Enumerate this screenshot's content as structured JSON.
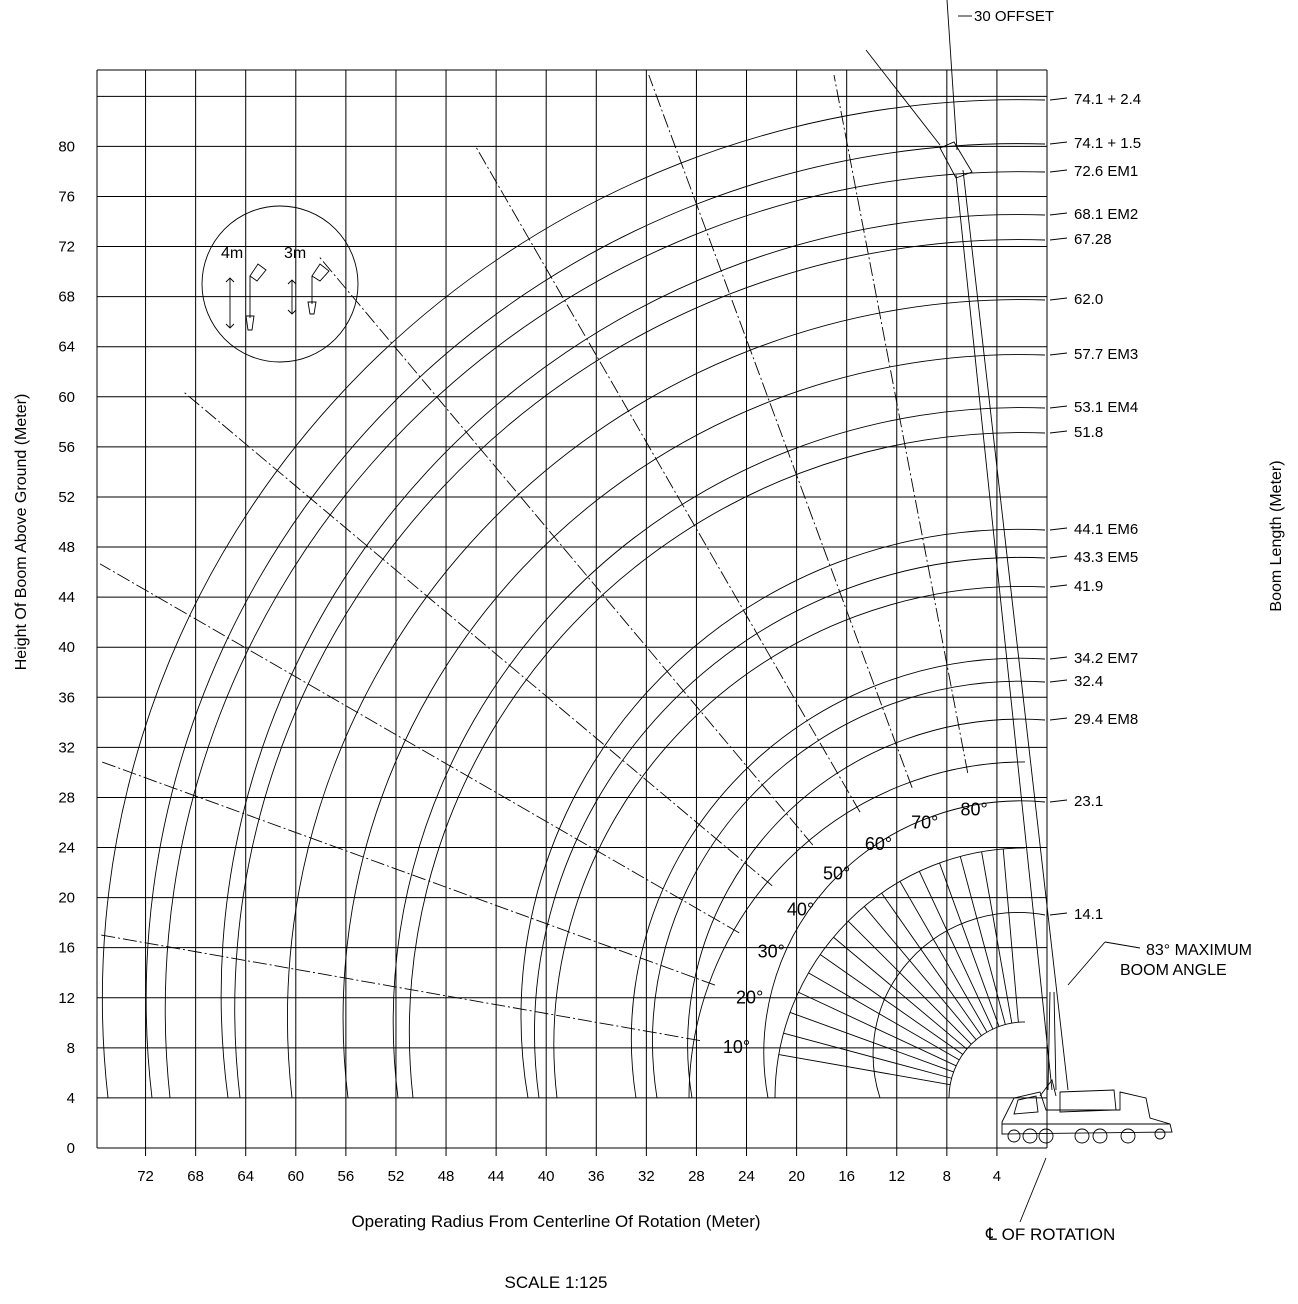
{
  "chart_data": {
    "type": "range-diagram",
    "xlabel": "Operating Radius From Centerline Of Rotation (Meter)",
    "ylabel": "Height Of Boom Above Ground (Meter)",
    "right_label": "Boom Length (Meter)",
    "scale": "SCALE 1:125",
    "x_ticks": [
      "72",
      "68",
      "64",
      "60",
      "56",
      "52",
      "48",
      "44",
      "40",
      "36",
      "32",
      "28",
      "24",
      "20",
      "16",
      "12",
      "8",
      "4"
    ],
    "y_ticks": [
      "0",
      "4",
      "8",
      "12",
      "16",
      "20",
      "24",
      "28",
      "32",
      "36",
      "40",
      "44",
      "48",
      "52",
      "56",
      "60",
      "64",
      "68",
      "72",
      "76",
      "80"
    ],
    "boom_lengths": [
      "74.1 + 2.4",
      "74.1 + 1.5",
      "72.6 EM1",
      "68.1 EM2",
      "67.28",
      "62.0",
      "57.7 EM3",
      "53.1 EM4",
      "51.8",
      "44.1 EM6",
      "43.3 EM5",
      "41.9",
      "34.2 EM7",
      "32.4",
      "29.4 EM8",
      "23.1",
      "14.1"
    ],
    "angle_labels": [
      "10°",
      "20°",
      "30°",
      "40°",
      "50°",
      "60°",
      "70°",
      "80°"
    ],
    "offset_label": "30 OFFSET",
    "max_angle_line1": "83° MAXIMUM",
    "max_angle_line2": "BOOM ANGLE",
    "rotation_label": "℄ OF ROTATION",
    "inset_labels": [
      "4m",
      "3m"
    ]
  }
}
